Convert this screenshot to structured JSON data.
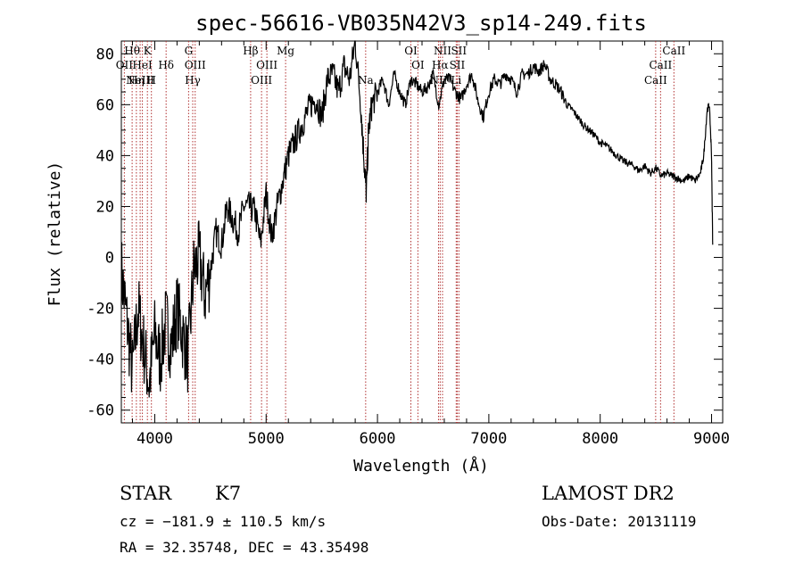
{
  "chart_data": {
    "type": "line",
    "title": "spec-56616-VB035N42V3_sp14-249.fits",
    "xlabel": "Wavelength (Å)",
    "ylabel": "Flux (relative)",
    "xlim": [
      3700,
      9100
    ],
    "ylim": [
      -65,
      85
    ],
    "x_ticks": [
      4000,
      5000,
      6000,
      7000,
      8000,
      9000
    ],
    "y_ticks": [
      -60,
      -40,
      -20,
      0,
      20,
      40,
      60,
      80
    ],
    "series": [
      {
        "x": [
          3700,
          3750,
          3800,
          3850,
          3900,
          3950,
          4000,
          4050,
          4100,
          4150,
          4200,
          4250,
          4300,
          4350,
          4400,
          4450,
          4500,
          4550,
          4600,
          4650,
          4700,
          4750,
          4800,
          4850,
          4900,
          4950,
          5000,
          5050,
          5100,
          5150,
          5200,
          5250,
          5300,
          5350,
          5400,
          5450,
          5500,
          5550,
          5600,
          5650,
          5700,
          5750,
          5800,
          5850,
          5880,
          5900,
          5920,
          5950,
          6000,
          6050,
          6100,
          6150,
          6200,
          6250,
          6300,
          6350,
          6400,
          6450,
          6500,
          6550,
          6600,
          6650,
          6700,
          6750,
          6800,
          6850,
          6900,
          6950,
          7000,
          7050,
          7100,
          7150,
          7200,
          7250,
          7300,
          7350,
          7400,
          7450,
          7500,
          7550,
          7600,
          7650,
          7700,
          7750,
          7800,
          7850,
          7900,
          7950,
          8000,
          8050,
          8100,
          8150,
          8200,
          8250,
          8300,
          8350,
          8400,
          8450,
          8500,
          8550,
          8600,
          8650,
          8700,
          8750,
          8800,
          8850,
          8900,
          8930,
          8960,
          8980,
          9000,
          9010
        ],
        "y": [
          -5,
          -25,
          -45,
          -20,
          -35,
          -50,
          -30,
          -40,
          -25,
          -35,
          -20,
          -30,
          -40,
          -5,
          0,
          -15,
          -5,
          10,
          5,
          20,
          15,
          10,
          20,
          20,
          18,
          5,
          25,
          8,
          20,
          30,
          40,
          45,
          50,
          55,
          60,
          62,
          55,
          70,
          72,
          65,
          75,
          70,
          85,
          60,
          38,
          25,
          50,
          60,
          65,
          70,
          60,
          72,
          65,
          60,
          70,
          68,
          65,
          67,
          72,
          60,
          70,
          70,
          65,
          62,
          68,
          72,
          62,
          55,
          65,
          70,
          68,
          72,
          70,
          65,
          72,
          72,
          75,
          73,
          76,
          70,
          68,
          65,
          60,
          58,
          55,
          52,
          50,
          48,
          45,
          44,
          42,
          40,
          38,
          37,
          36,
          34,
          36,
          33,
          35,
          32,
          33,
          32,
          31,
          30,
          32,
          30,
          33,
          40,
          58,
          60,
          40,
          5
        ]
      }
    ],
    "emission_lines": [
      {
        "wl": 3727,
        "label": "OII",
        "row": 1
      },
      {
        "wl": 3797,
        "label": "Hθ",
        "row": 0
      },
      {
        "wl": 3835,
        "label": "Hη",
        "row": 2
      },
      {
        "wl": 3869,
        "label": "NeIII",
        "row": 2
      },
      {
        "wl": 3889,
        "label": "HeI",
        "row": 1
      },
      {
        "wl": 3934,
        "label": "K",
        "row": 0
      },
      {
        "wl": 3970,
        "label": "H",
        "row": 2
      },
      {
        "wl": 4102,
        "label": "Hδ",
        "row": 1
      },
      {
        "wl": 4304,
        "label": "G",
        "row": 0
      },
      {
        "wl": 4341,
        "label": "Hγ",
        "row": 2
      },
      {
        "wl": 4363,
        "label": "OIII",
        "row": 1
      },
      {
        "wl": 4861,
        "label": "Hβ",
        "row": 0
      },
      {
        "wl": 4959,
        "label": "OIII",
        "row": 2
      },
      {
        "wl": 5007,
        "label": "OIII",
        "row": 1
      },
      {
        "wl": 5175,
        "label": "Mg",
        "row": 0
      },
      {
        "wl": 5894,
        "label": "Na",
        "row": 2
      },
      {
        "wl": 6300,
        "label": "OI",
        "row": 0
      },
      {
        "wl": 6363,
        "label": "OI",
        "row": 1
      },
      {
        "wl": 6548,
        "label": "NII",
        "row": 2
      },
      {
        "wl": 6563,
        "label": "Hα",
        "row": 1
      },
      {
        "wl": 6584,
        "label": "NII",
        "row": 0
      },
      {
        "wl": 6707,
        "label": "Li",
        "row": 2
      },
      {
        "wl": 6716,
        "label": "SII",
        "row": 1
      },
      {
        "wl": 6731,
        "label": "SII",
        "row": 0
      },
      {
        "wl": 8498,
        "label": "CaII",
        "row": 2
      },
      {
        "wl": 8542,
        "label": "CaII",
        "row": 1
      },
      {
        "wl": 8662,
        "label": "CaII",
        "row": 0
      }
    ]
  },
  "info": {
    "class_label": "STAR",
    "subclass_label": "K7",
    "survey": "LAMOST DR2",
    "cz": "cz = −181.9 ± 110.5 km/s",
    "obs_date": "Obs-Date: 20131119",
    "coords": "RA =  32.35748, DEC =  43.35498"
  },
  "colors": {
    "line": "#000000",
    "marker": "#b03030"
  }
}
